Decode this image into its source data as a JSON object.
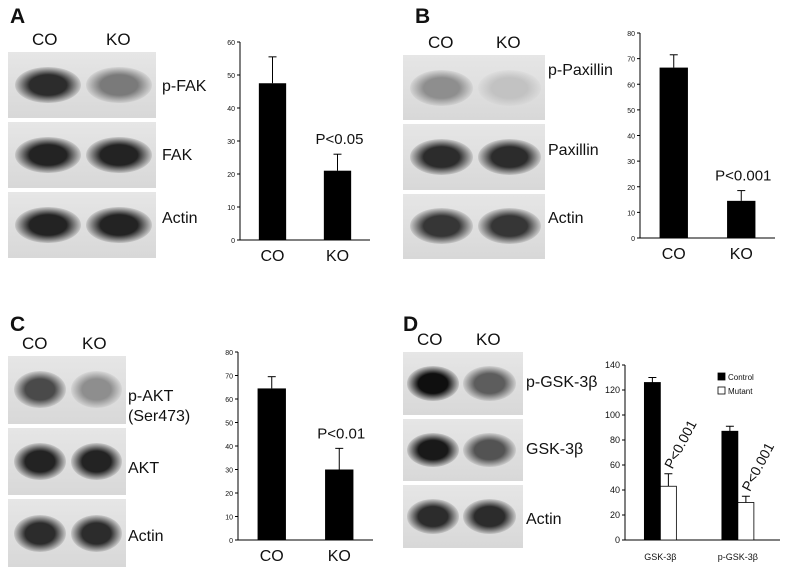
{
  "panels": [
    {
      "id": "A",
      "letter": "A",
      "lanes": [
        "CO",
        "KO"
      ],
      "blots": [
        {
          "label": "p-FAK",
          "intensity": [
            0.85,
            0.45
          ]
        },
        {
          "label": "FAK",
          "intensity": [
            0.9,
            0.9
          ]
        },
        {
          "label": "Actin",
          "intensity": [
            0.9,
            0.9
          ]
        }
      ]
    },
    {
      "id": "B",
      "letter": "B",
      "lanes": [
        "CO",
        "KO"
      ],
      "blots": [
        {
          "label": "p-Paxillin",
          "intensity": [
            0.35,
            0.08
          ]
        },
        {
          "label": "Paxillin",
          "intensity": [
            0.85,
            0.85
          ]
        },
        {
          "label": "Actin",
          "intensity": [
            0.8,
            0.8
          ]
        }
      ]
    },
    {
      "id": "C",
      "letter": "C",
      "lanes": [
        "CO",
        "KO"
      ],
      "blots": [
        {
          "label": "p-AKT\n(Ser473)",
          "intensity": [
            0.7,
            0.35
          ]
        },
        {
          "label": "AKT",
          "intensity": [
            0.9,
            0.9
          ]
        },
        {
          "label": "Actin",
          "intensity": [
            0.85,
            0.85
          ]
        }
      ]
    },
    {
      "id": "D",
      "letter": "D",
      "lanes": [
        "CO",
        "KO"
      ],
      "blots": [
        {
          "label": "p-GSK-3β",
          "intensity": [
            1.0,
            0.6
          ]
        },
        {
          "label": "GSK-3β",
          "intensity": [
            0.95,
            0.65
          ]
        },
        {
          "label": "Actin",
          "intensity": [
            0.85,
            0.85
          ]
        }
      ]
    }
  ],
  "chart_data": [
    {
      "panel": "A",
      "type": "bar",
      "categories": [
        "CO",
        "KO"
      ],
      "values": [
        47.5,
        21
      ],
      "errors": [
        8,
        5
      ],
      "ylim": [
        0,
        60
      ],
      "yticks": [
        0,
        10,
        20,
        30,
        40,
        50,
        60
      ],
      "annotations": [
        {
          "text": "P<0.05",
          "category": "KO"
        }
      ],
      "colors": {
        "bar": "#000000"
      }
    },
    {
      "panel": "B",
      "type": "bar",
      "categories": [
        "CO",
        "KO"
      ],
      "values": [
        66.5,
        14.5
      ],
      "errors": [
        5,
        4
      ],
      "ylim": [
        0,
        80
      ],
      "yticks": [
        0,
        10,
        20,
        30,
        40,
        50,
        60,
        70,
        80
      ],
      "annotations": [
        {
          "text": "P<0.001",
          "category": "KO"
        }
      ],
      "colors": {
        "bar": "#000000"
      }
    },
    {
      "panel": "C",
      "type": "bar",
      "categories": [
        "CO",
        "KO"
      ],
      "values": [
        64.5,
        30
      ],
      "errors": [
        5,
        9
      ],
      "ylim": [
        0,
        80
      ],
      "yticks": [
        0,
        10,
        20,
        30,
        40,
        50,
        60,
        70,
        80
      ],
      "annotations": [
        {
          "text": "P<0.01",
          "category": "KO"
        }
      ],
      "colors": {
        "bar": "#000000"
      }
    },
    {
      "panel": "D",
      "type": "bar",
      "categories": [
        "GSK-3β",
        "p-GSK-3β"
      ],
      "series": [
        {
          "name": "Control",
          "values": [
            126,
            87
          ],
          "errors": [
            4,
            4
          ],
          "color": "#000000"
        },
        {
          "name": "Mutant",
          "values": [
            43,
            30
          ],
          "errors": [
            10,
            5
          ],
          "color": "#ffffff"
        }
      ],
      "ylim": [
        0,
        140
      ],
      "yticks": [
        0,
        20,
        40,
        60,
        80,
        100,
        120,
        140
      ],
      "annotations": [
        {
          "text": "P<0.001",
          "category": "GSK-3β",
          "rotated": true
        },
        {
          "text": "P<0.001",
          "category": "p-GSK-3β",
          "rotated": true
        }
      ],
      "legend": "top-right"
    }
  ]
}
